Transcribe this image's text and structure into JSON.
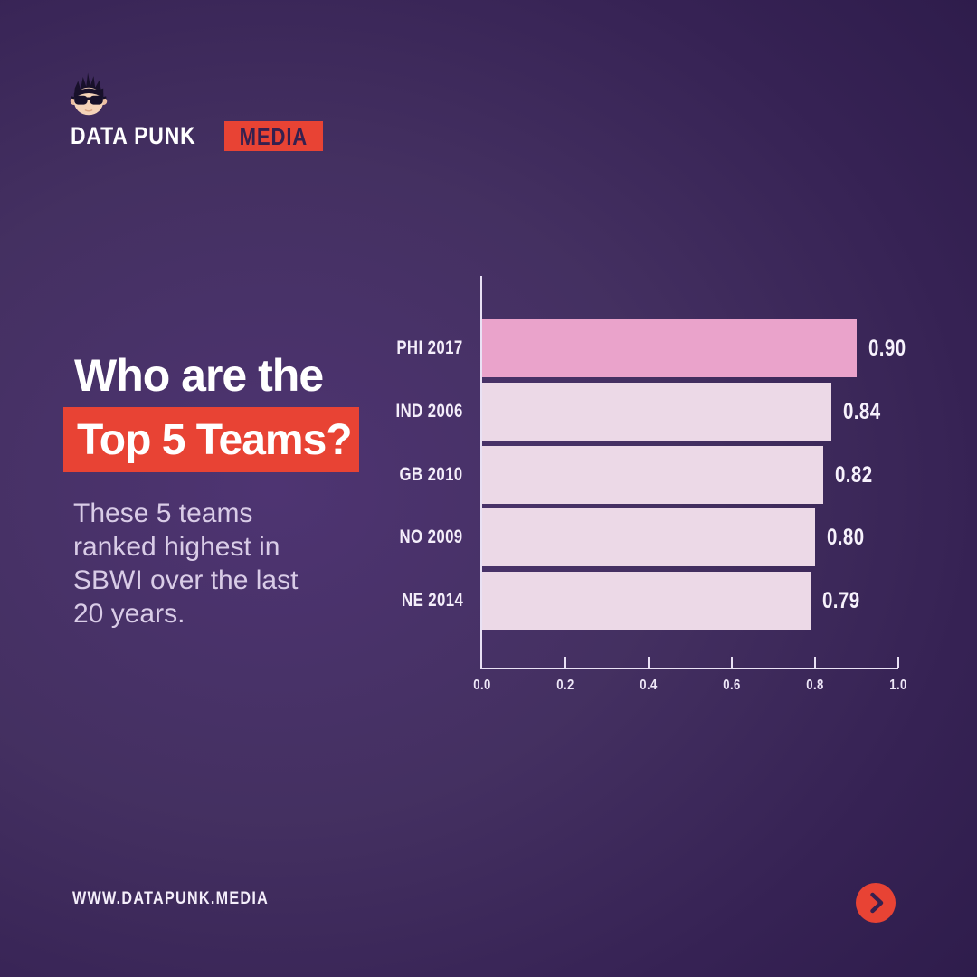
{
  "brand": {
    "name_primary": "DATA PUNK",
    "name_secondary": "MEDIA",
    "website": "WWW.DATAPUNK.MEDIA"
  },
  "headline": {
    "line1": "Who are the",
    "line2": "Top 5 Teams?"
  },
  "description": {
    "lines": [
      "These 5 teams",
      "ranked highest in",
      "SBWI over the last",
      "20 years."
    ]
  },
  "colors": {
    "accent_red": "#e84334",
    "bar_highlight": "#eaa3cb",
    "bar_default": "#ecd9e7",
    "axis": "#e9e1f4",
    "dark_purple_text": "#35204f",
    "background_center": "#4e3472",
    "background_edge": "#2a1947"
  },
  "chart_data": {
    "type": "bar",
    "orientation": "horizontal",
    "title": "",
    "xlabel": "",
    "ylabel": "",
    "categories": [
      "PHI 2017",
      "IND 2006",
      "GB 2010",
      "NO 2009",
      "NE 2014"
    ],
    "values": [
      0.9,
      0.84,
      0.82,
      0.8,
      0.79
    ],
    "value_labels": [
      "0.90",
      "0.84",
      "0.82",
      "0.80",
      "0.79"
    ],
    "x_ticks": [
      "0.0",
      "0.2",
      "0.4",
      "0.6",
      "0.8",
      "1.0"
    ],
    "xlim": [
      0.0,
      1.0
    ],
    "highlight_index": 0,
    "grid": false,
    "legend": false
  },
  "footer": {
    "cta_icon": "chevron-right"
  }
}
